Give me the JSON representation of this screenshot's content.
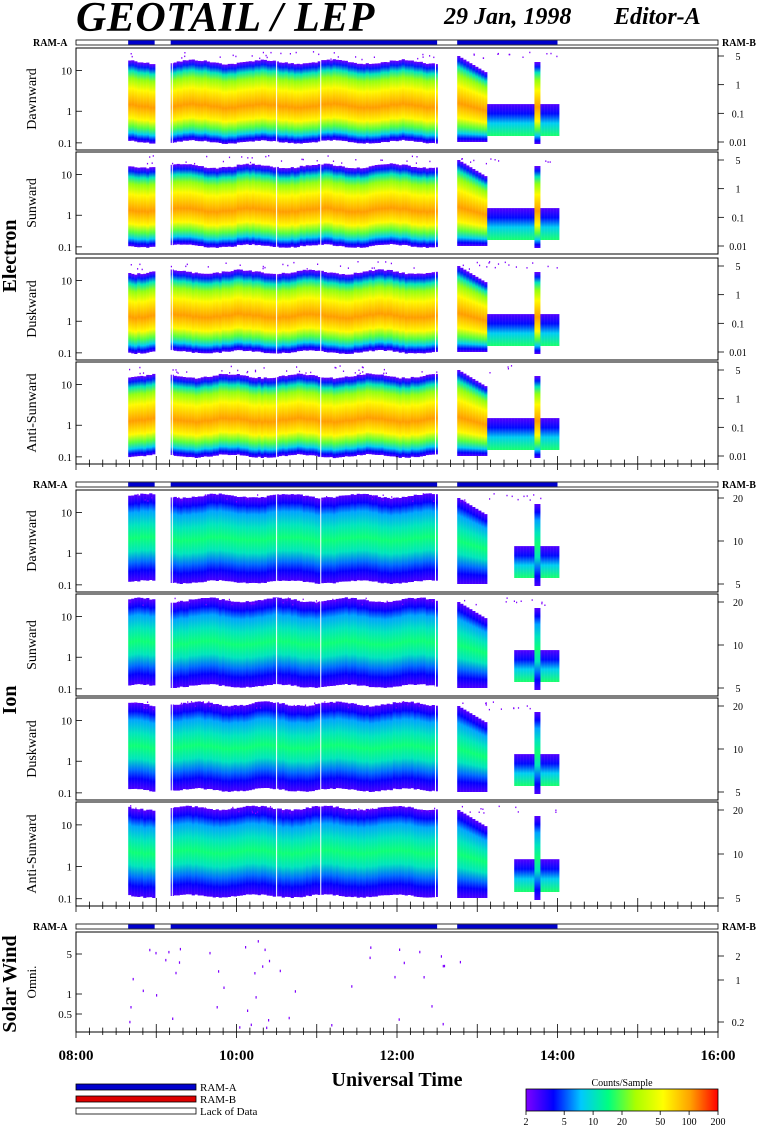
{
  "header": {
    "title": "GEOTAIL / LEP",
    "date": "29 Jan, 1998",
    "editor": "Editor-A"
  },
  "chart_data": {
    "type": "heatmap",
    "xlabel": "Universal Time",
    "x_tick_labels": [
      "08:00",
      "10:00",
      "12:00",
      "14:00",
      "16:00"
    ],
    "xlim_hours": [
      8,
      16
    ],
    "data_coverage_hours": [
      [
        8.65,
        8.98
      ],
      [
        9.18,
        12.5
      ],
      [
        12.75,
        14.0
      ]
    ],
    "flag_bar": {
      "left_label": "RAM-A",
      "right_label": "RAM-B"
    },
    "groups": [
      {
        "name": "Electron",
        "panels": [
          {
            "name": "Dawnward",
            "y_ticks": [
              "10",
              "1",
              "0.1"
            ],
            "right_ticks": [
              "5",
              "1",
              "0.1",
              "0.01"
            ]
          },
          {
            "name": "Sunward",
            "y_ticks": [
              "10",
              "1",
              "0.1"
            ],
            "right_ticks": [
              "5",
              "1",
              "0.1",
              "0.01"
            ]
          },
          {
            "name": "Duskward",
            "y_ticks": [
              "10",
              "1",
              "0.1"
            ],
            "right_ticks": [
              "5",
              "1",
              "0.1",
              "0.01"
            ]
          },
          {
            "name": "Anti-Sunward",
            "y_ticks": [
              "10",
              "1",
              "0.1"
            ],
            "right_ticks": [
              "5",
              "1",
              "0.1",
              "0.01"
            ]
          }
        ]
      },
      {
        "name": "Ion",
        "panels": [
          {
            "name": "Dawnward",
            "y_ticks": [
              "10",
              "1",
              "0.1"
            ],
            "right_ticks": [
              "20",
              "10",
              "5"
            ]
          },
          {
            "name": "Sunward",
            "y_ticks": [
              "10",
              "1",
              "0.1"
            ],
            "right_ticks": [
              "20",
              "10",
              "5"
            ]
          },
          {
            "name": "Duskward",
            "y_ticks": [
              "10",
              "1",
              "0.1"
            ],
            "right_ticks": [
              "20",
              "10",
              "5"
            ]
          },
          {
            "name": "Anti-Sunward",
            "y_ticks": [
              "10",
              "1",
              "0.1"
            ],
            "right_ticks": [
              "20",
              "10",
              "5"
            ]
          }
        ]
      },
      {
        "name": "Solar Wind",
        "panels": [
          {
            "name": "Omni.",
            "y_ticks": [
              "5",
              "1",
              "0.5"
            ],
            "right_ticks": [
              "2",
              "1",
              "0.2"
            ]
          }
        ]
      }
    ],
    "legend": [
      {
        "label": "RAM-A",
        "color": "#0000cc"
      },
      {
        "label": "RAM-B",
        "color": "#dd0000"
      },
      {
        "label": "Lack of Data",
        "color": "#ffffff"
      }
    ],
    "colorbar": {
      "title": "Counts/Sample",
      "tick_labels": [
        "2",
        "5",
        "10",
        "20",
        "50",
        "100",
        "200"
      ],
      "colors": [
        "#7f00ff",
        "#0000ff",
        "#00c8ff",
        "#00ff80",
        "#aaff00",
        "#ffff00",
        "#ffa000",
        "#ff0000"
      ]
    }
  }
}
